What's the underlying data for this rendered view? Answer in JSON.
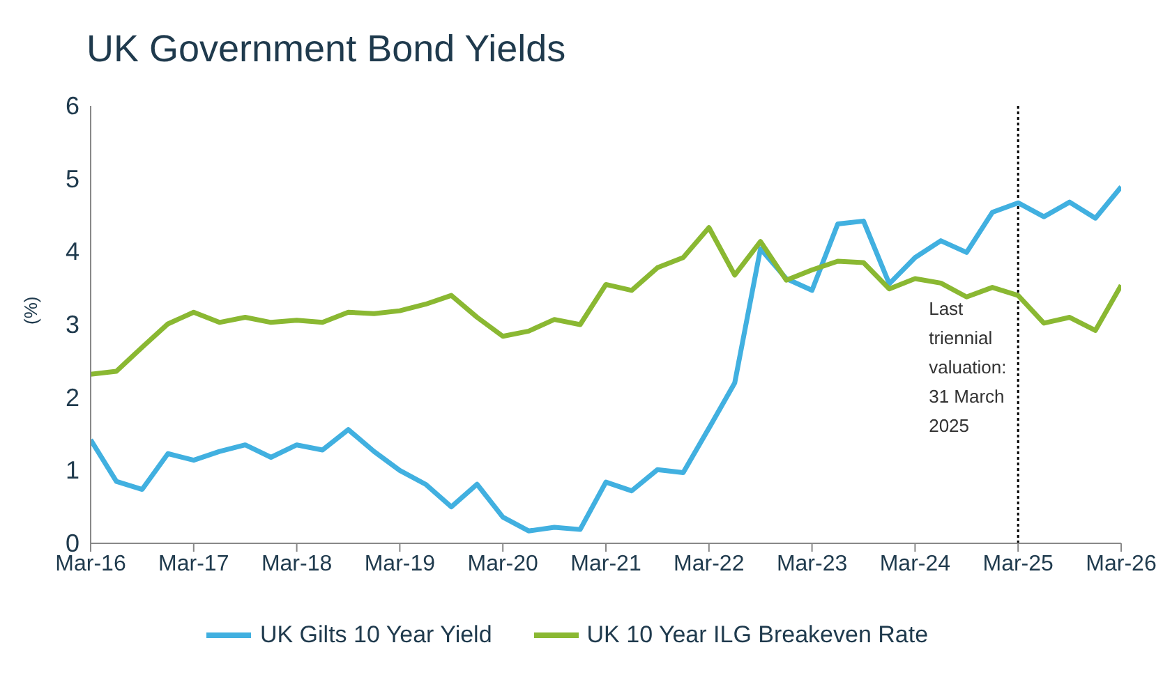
{
  "chart_data": {
    "type": "line",
    "title": "UK Government Bond Yields",
    "ylabel": "(%)",
    "categories": [
      "Mar-16",
      null,
      null,
      null,
      "Mar-17",
      null,
      null,
      null,
      "Mar-18",
      null,
      null,
      null,
      "Mar-19",
      null,
      null,
      null,
      "Mar-20",
      null,
      null,
      null,
      "Mar-21",
      null,
      null,
      null,
      "Mar-22",
      null,
      null,
      null,
      "Mar-23",
      null,
      null,
      null,
      "Mar-24",
      null,
      null,
      null,
      "Mar-25",
      null,
      null,
      null,
      "Mar-26"
    ],
    "series": [
      {
        "name": "UK Gilts 10 Year Yield",
        "color": "#41b0e0",
        "values": [
          1.42,
          0.85,
          0.74,
          1.23,
          1.14,
          1.26,
          1.35,
          1.18,
          1.35,
          1.28,
          1.56,
          1.26,
          1.0,
          0.81,
          0.5,
          0.81,
          0.36,
          0.17,
          0.22,
          0.19,
          0.84,
          0.72,
          1.01,
          0.97,
          1.58,
          2.2,
          4.04,
          3.63,
          3.47,
          4.38,
          4.42,
          3.56,
          3.92,
          4.15,
          3.99,
          4.54,
          4.67,
          4.48,
          4.68,
          4.46,
          4.89
        ]
      },
      {
        "name": "UK 10 Year ILG Breakeven Rate",
        "color": "#8ab832",
        "values": [
          2.32,
          2.36,
          2.69,
          3.01,
          3.17,
          3.03,
          3.1,
          3.03,
          3.06,
          3.03,
          3.17,
          3.15,
          3.19,
          3.28,
          3.4,
          3.1,
          2.84,
          2.91,
          3.07,
          3.0,
          3.55,
          3.47,
          3.78,
          3.92,
          4.33,
          3.68,
          4.14,
          3.61,
          3.75,
          3.87,
          3.85,
          3.49,
          3.63,
          3.57,
          3.38,
          3.51,
          3.4,
          3.02,
          3.1,
          2.92,
          3.54
        ]
      }
    ],
    "ylim": [
      0,
      6
    ],
    "yticks": [
      0,
      1,
      2,
      3,
      4,
      5,
      6
    ],
    "grid": false,
    "legend": "bottom",
    "marker": "none",
    "line_style": "solid",
    "ref_lines": [
      {
        "axis": "x",
        "value": "Mar-25",
        "label": "Last triennial valuation: 31 March 2025",
        "color": "#000000",
        "line_style": "dotted"
      }
    ]
  }
}
